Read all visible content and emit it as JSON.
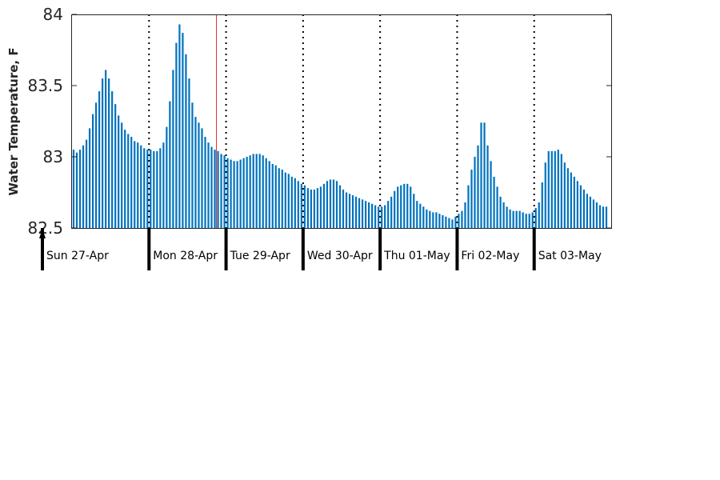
{
  "chart_data": {
    "type": "bar",
    "ylabel": "Water Temperature, F",
    "ylim": [
      82.5,
      84
    ],
    "yticks": [
      "82.5",
      "83",
      "83.5",
      "84"
    ],
    "bar_color": "#0072bd",
    "day_labels": [
      "Sun 27-Apr",
      "Mon 28-Apr",
      "Tue 29-Apr",
      "Wed 30-Apr",
      "Thu 01-May",
      "Fri 02-May",
      "Sat 03-May"
    ],
    "x_start": "2025-04-27 00:00",
    "x_end": "2025-05-04 00:00",
    "hours_per_bar": 1,
    "now_marker_color": "#e03030",
    "now_marker": "2025-04-28 21:00",
    "values": [
      83.05,
      83.03,
      83.05,
      83.08,
      83.12,
      83.2,
      83.3,
      83.38,
      83.46,
      83.55,
      83.61,
      83.55,
      83.46,
      83.37,
      83.29,
      83.24,
      83.19,
      83.16,
      83.14,
      83.11,
      83.1,
      83.08,
      83.06,
      83.05,
      83.05,
      83.04,
      83.04,
      83.06,
      83.1,
      83.21,
      83.39,
      83.61,
      83.8,
      83.93,
      83.87,
      83.72,
      83.55,
      83.38,
      83.28,
      83.24,
      83.2,
      83.14,
      83.1,
      83.07,
      83.05,
      83.04,
      83.02,
      83.01,
      82.99,
      82.98,
      82.97,
      82.97,
      82.98,
      82.99,
      83.0,
      83.01,
      83.02,
      83.02,
      83.02,
      83.01,
      82.99,
      82.97,
      82.95,
      82.94,
      82.92,
      82.91,
      82.89,
      82.88,
      82.86,
      82.85,
      82.83,
      82.81,
      82.8,
      82.78,
      82.77,
      82.77,
      82.78,
      82.79,
      82.81,
      82.83,
      82.84,
      82.84,
      82.83,
      82.8,
      82.77,
      82.75,
      82.74,
      82.73,
      82.72,
      82.71,
      82.7,
      82.69,
      82.68,
      82.67,
      82.66,
      82.65,
      82.65,
      82.66,
      82.69,
      82.72,
      82.76,
      82.79,
      82.8,
      82.81,
      82.81,
      82.79,
      82.74,
      82.69,
      82.67,
      82.65,
      82.63,
      82.62,
      82.61,
      82.61,
      82.6,
      82.59,
      82.58,
      82.57,
      82.56,
      82.58,
      82.6,
      82.62,
      82.68,
      82.8,
      82.91,
      83.0,
      83.08,
      83.24,
      83.24,
      83.08,
      82.97,
      82.86,
      82.79,
      82.72,
      82.68,
      82.65,
      82.63,
      82.62,
      82.62,
      82.62,
      82.61,
      82.6,
      82.6,
      82.61,
      82.64,
      82.68,
      82.82,
      82.96,
      83.04,
      83.04,
      83.04,
      83.05,
      83.02,
      82.96,
      82.92,
      82.89,
      82.86,
      82.83,
      82.8,
      82.77,
      82.74,
      82.72,
      82.7,
      82.68,
      82.66,
      82.65,
      82.65
    ]
  }
}
